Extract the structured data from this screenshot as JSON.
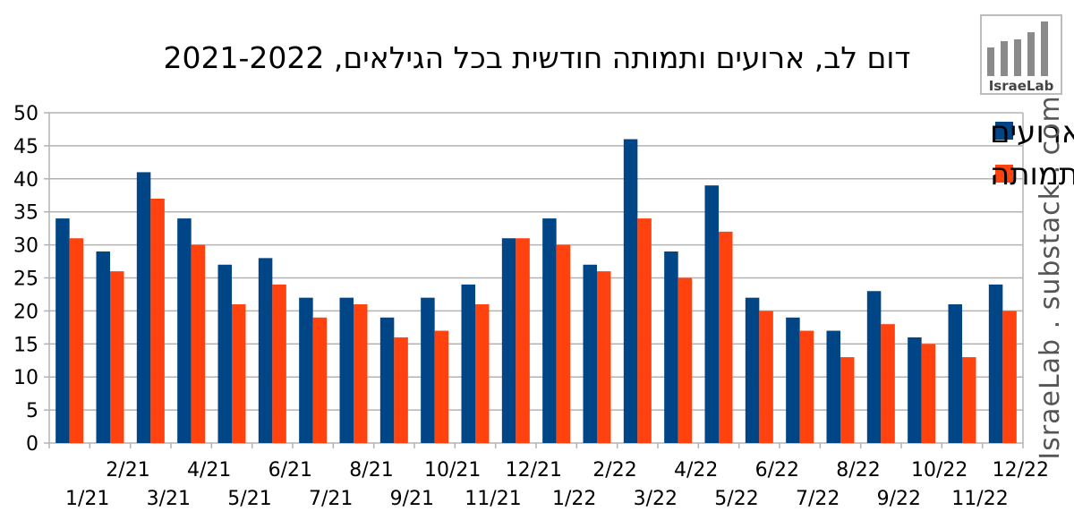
{
  "title": "דום לב, ארועים ותמותה חודשית בכל הגילאים, 2021-2022",
  "logo_text": "IsraeLab",
  "watermark": "IsraeLab . substack . com",
  "colors": {
    "series1": "#004586",
    "series2": "#ff420e",
    "grid": "#b3b3b3"
  },
  "chart_data": {
    "type": "bar",
    "title": "דום לב, ארועים ותמותה חודשית בכל הגילאים, 2021-2022",
    "categories": [
      "1/21",
      "2/21",
      "3/21",
      "4/21",
      "5/21",
      "6/21",
      "7/21",
      "8/21",
      "9/21",
      "10/21",
      "11/21",
      "12/21",
      "1/22",
      "2/22",
      "3/22",
      "4/22",
      "5/22",
      "6/22",
      "7/22",
      "8/22",
      "9/22",
      "10/22",
      "11/22",
      "12/22"
    ],
    "series": [
      {
        "name": "ארועים",
        "values": [
          34,
          29,
          41,
          34,
          27,
          28,
          22,
          22,
          19,
          22,
          24,
          31,
          34,
          27,
          46,
          29,
          39,
          22,
          19,
          17,
          23,
          16,
          21,
          24
        ]
      },
      {
        "name": "תמותה",
        "values": [
          31,
          26,
          37,
          30,
          21,
          24,
          19,
          21,
          16,
          17,
          21,
          31,
          30,
          26,
          34,
          25,
          32,
          20,
          17,
          13,
          18,
          15,
          13,
          20
        ]
      }
    ],
    "yticks": [
      0,
      5,
      10,
      15,
      20,
      25,
      30,
      35,
      40,
      45,
      50
    ],
    "ylim": [
      0,
      50
    ],
    "grid": true,
    "legend_position": "top-right"
  }
}
